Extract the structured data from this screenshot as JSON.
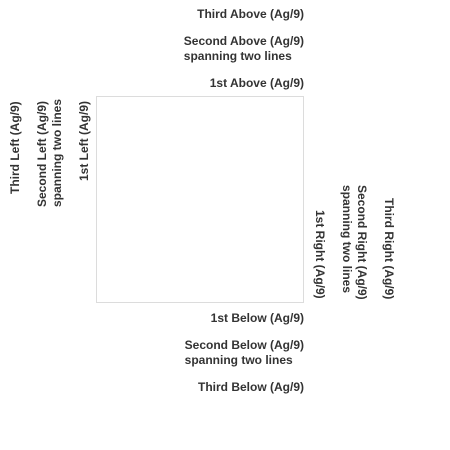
{
  "labels": {
    "above": {
      "first": "1st Above (Ag/9)",
      "second_line1": "Second Above (Ag/9)",
      "second_line2": "spanning two lines",
      "third": "Third Above (Ag/9)"
    },
    "below": {
      "first": "1st Below (Ag/9)",
      "second_line1": "Second Below (Ag/9)",
      "second_line2": "spanning two lines",
      "third": "Third Below (Ag/9)"
    },
    "left": {
      "first": "1st Left (Ag/9)",
      "second_line1": "Second Left (Ag/9)",
      "second_line2": "spanning two lines",
      "third": "Third Left (Ag/9)"
    },
    "right": {
      "first": "1st Right (Ag/9)",
      "second_line1": "Second Right (Ag/9)",
      "second_line2": "spanning two lines",
      "third": "Third Right (Ag/9)"
    }
  },
  "colors": {
    "text": "#333333",
    "box_border": "#dcdcdc",
    "background": "#ffffff"
  }
}
